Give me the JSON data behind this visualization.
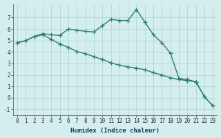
{
  "x": [
    0,
    1,
    2,
    3,
    4,
    5,
    6,
    7,
    8,
    9,
    10,
    11,
    12,
    13,
    14,
    15,
    16,
    17,
    18,
    19,
    20,
    21,
    22,
    23
  ],
  "line1": [
    4.8,
    5.0,
    5.35,
    5.6,
    5.5,
    5.45,
    6.0,
    5.9,
    5.8,
    5.75,
    6.3,
    6.85,
    6.75,
    6.75,
    7.7,
    6.6,
    5.5,
    4.8,
    3.9,
    1.7,
    1.6,
    1.4,
    0.1,
    -0.7
  ],
  "line2": [
    4.8,
    5.0,
    5.35,
    5.5,
    5.1,
    4.7,
    4.4,
    4.05,
    3.85,
    3.6,
    3.35,
    3.05,
    2.85,
    2.7,
    2.6,
    2.45,
    2.2,
    2.0,
    1.75,
    1.6,
    1.5,
    1.4,
    0.1,
    -0.7
  ],
  "line_color": "#2a7d6e",
  "background_color": "#d4eded",
  "grid_color": "#a8d4d4",
  "xlabel": "Humidex (Indice chaleur)",
  "ylim": [
    -1.5,
    8.2
  ],
  "xlim": [
    -0.5,
    23.5
  ],
  "yticks": [
    -1,
    0,
    1,
    2,
    3,
    4,
    5,
    6,
    7
  ],
  "xticks": [
    0,
    1,
    2,
    3,
    4,
    5,
    6,
    7,
    8,
    9,
    10,
    11,
    12,
    13,
    14,
    15,
    16,
    17,
    18,
    19,
    20,
    21,
    22,
    23
  ],
  "marker": "+",
  "markersize": 4,
  "linewidth": 1.0,
  "tick_fontsize": 5.5,
  "label_fontsize": 6.5
}
